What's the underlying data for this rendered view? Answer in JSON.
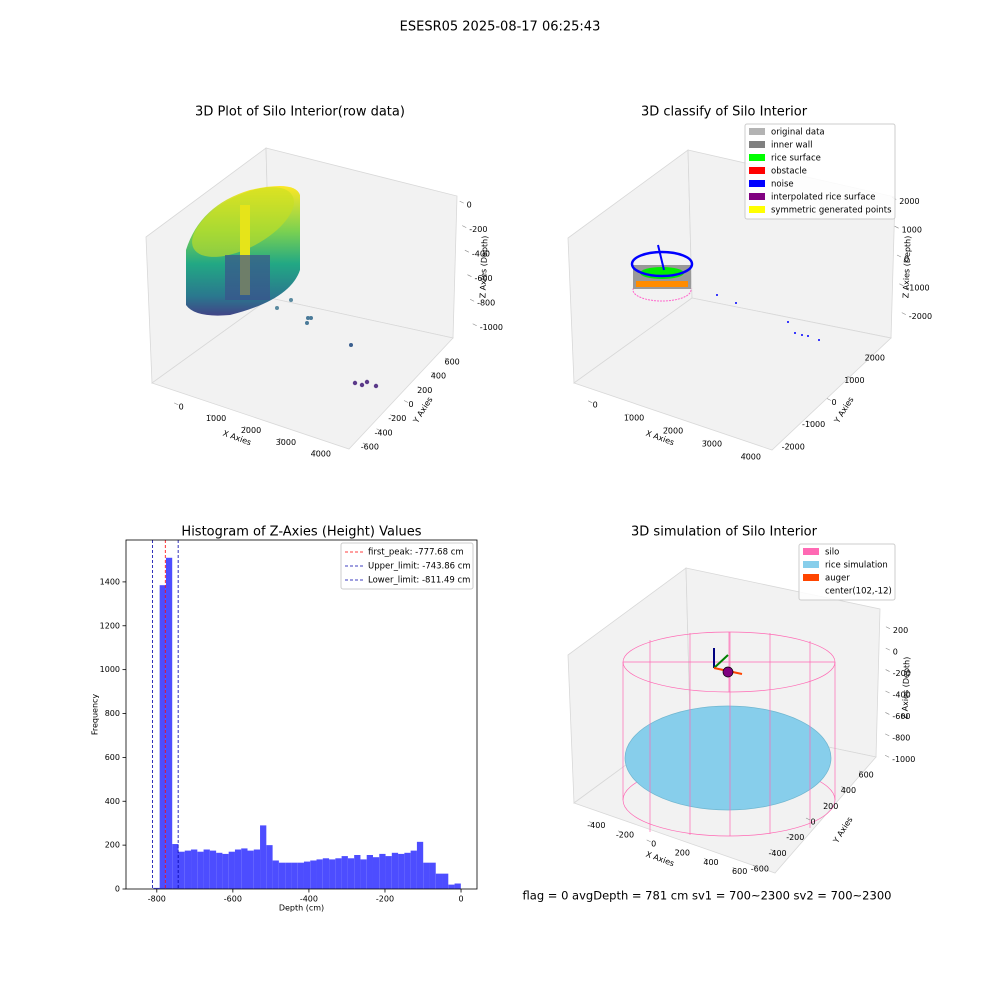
{
  "suptitle": "ESESR05 2025-08-17 06:25:43",
  "chart_data": [
    {
      "type": "scatter3d",
      "title": "3D Plot of Silo Interior(row data)",
      "xlabel": "X Axies",
      "ylabel": "Y Axies",
      "zlabel": "Z Axies (Depth)",
      "xlim": [
        -750,
        4750
      ],
      "xticks": [
        0,
        1000,
        2000,
        3000,
        4000
      ],
      "ylim": [
        -700,
        700
      ],
      "yticks": [
        -600,
        -400,
        -200,
        0,
        200,
        400,
        600
      ],
      "zlim": [
        -1100,
        50
      ],
      "zticks": [
        -1000,
        -800,
        -600,
        -400,
        -200,
        0
      ]
    },
    {
      "type": "scatter3d",
      "title": "3D classify of Silo Interior",
      "xlabel": "X Axies",
      "ylabel": "Y Axies",
      "zlabel": "Z Axies (Depth)",
      "xlim": [
        -750,
        4750
      ],
      "xticks": [
        0,
        1000,
        2000,
        3000,
        4000
      ],
      "ylim": [
        -2500,
        2500
      ],
      "yticks": [
        -2000,
        -1000,
        0,
        1000,
        2000
      ],
      "zlim": [
        -2500,
        2500
      ],
      "zticks": [
        -2000,
        -1000,
        0,
        1000,
        2000
      ],
      "legend": [
        {
          "name": "original data",
          "color": "#b3b3b3"
        },
        {
          "name": "inner wall",
          "color": "#808080"
        },
        {
          "name": "rice surface",
          "color": "#00ff00"
        },
        {
          "name": "obstacle",
          "color": "#ff0000"
        },
        {
          "name": "noise",
          "color": "#0000ff"
        },
        {
          "name": "interpolated rice surface",
          "color": "#800080"
        },
        {
          "name": "symmetric generated points",
          "color": "#ffff00"
        }
      ]
    },
    {
      "type": "histogram",
      "title": "Histogram of Z-Axies (Height) Values",
      "xlabel": "Depth (cm)",
      "ylabel": "Frequency",
      "color": "#4d4dff",
      "bins": [
        -809,
        -792.5,
        -776,
        -759.5,
        -743,
        -726.5,
        -710,
        -693.5,
        -677,
        -660.5,
        -644,
        -627.5,
        -611,
        -594.5,
        -578,
        -561.5,
        -545,
        -528.5,
        -512,
        -495.5,
        -479,
        -462.5,
        -446,
        -429.5,
        -413,
        -396.5,
        -380,
        -363.5,
        -347,
        -330.5,
        -314,
        -297.5,
        -281,
        -264.5,
        -248,
        -231.5,
        -215,
        -198.5,
        -182,
        -165.5,
        -149,
        -132.5,
        -116,
        -99.5,
        -83,
        -66.5,
        -50,
        -33.5,
        -17,
        -0.5
      ],
      "values": [
        5,
        1385,
        1510,
        205,
        170,
        175,
        180,
        170,
        180,
        175,
        165,
        160,
        170,
        180,
        185,
        175,
        180,
        290,
        200,
        130,
        120,
        120,
        120,
        120,
        125,
        130,
        135,
        140,
        135,
        140,
        150,
        140,
        155,
        135,
        155,
        145,
        160,
        150,
        165,
        160,
        165,
        175,
        215,
        120,
        120,
        70,
        70,
        20,
        25
      ],
      "xlim": [
        -881,
        42
      ],
      "xticks": [
        -800,
        -600,
        -400,
        -200,
        0
      ],
      "ylim": [
        0,
        1591
      ],
      "yticks": [
        0,
        200,
        400,
        600,
        800,
        1000,
        1200,
        1400
      ],
      "vlines": [
        {
          "label": "first_peak: -777.68 cm",
          "value": -777.68,
          "color": "#ff0000"
        },
        {
          "label": "Upper_limit: -743.86 cm",
          "value": -743.86,
          "color": "#0000aa"
        },
        {
          "label": "Lower_limit: -811.49 cm",
          "value": -811.49,
          "color": "#0000aa"
        }
      ]
    },
    {
      "type": "scatter3d",
      "title": "3D simulation of Silo Interior",
      "xlabel": "X Axies",
      "ylabel": "Y Axies",
      "zlabel": "Z Axies (Depth)",
      "xlim": [
        -500,
        700
      ],
      "xticks": [
        -400,
        -200,
        0,
        200,
        400,
        600
      ],
      "ylim": [
        -700,
        700
      ],
      "yticks": [
        -600,
        -400,
        -200,
        0,
        200,
        400,
        600
      ],
      "zlim": [
        -1100,
        300
      ],
      "zticks": [
        -1000,
        -800,
        -600,
        -400,
        -200,
        0,
        200
      ],
      "legend": [
        {
          "name": "silo",
          "color": "#ff69b4"
        },
        {
          "name": "rice simulation",
          "color": "#87ceeb"
        },
        {
          "name": "auger",
          "color": "#ff4500"
        },
        {
          "name": "center(102,-12)",
          "color": null
        }
      ],
      "annotation": "flag = 0     avgDepth = 781 cm  sv1 = 700~2300  sv2 = 700~2300"
    }
  ]
}
